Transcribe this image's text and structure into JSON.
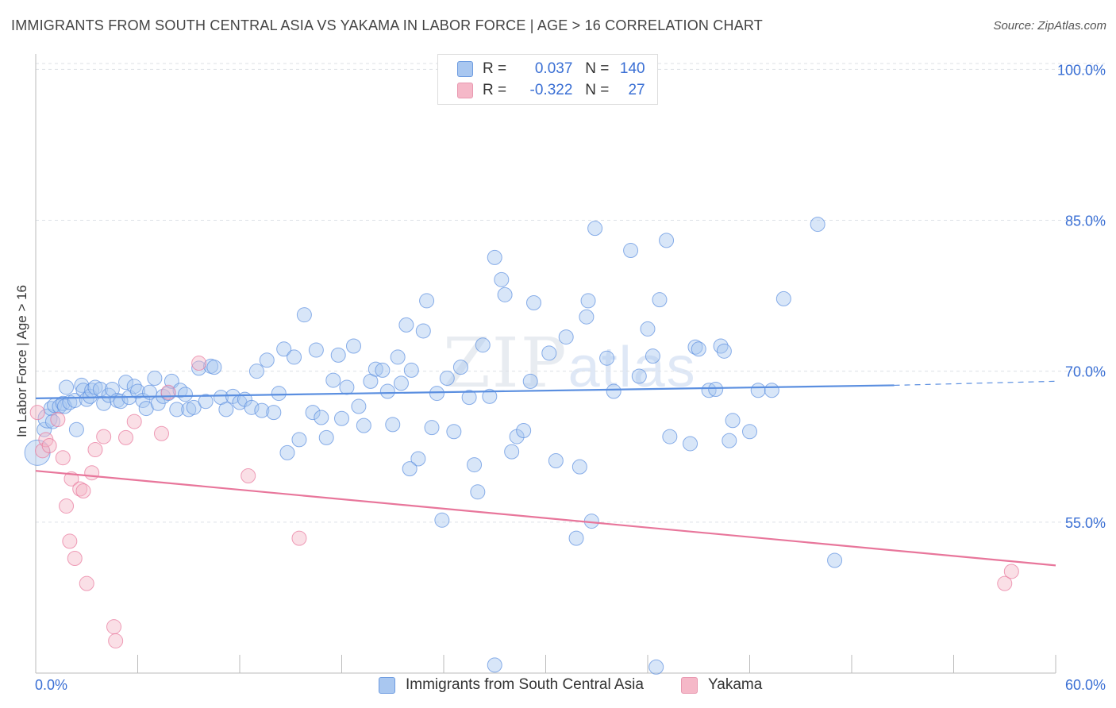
{
  "header": {
    "title": "IMMIGRANTS FROM SOUTH CENTRAL ASIA VS YAKAMA IN LABOR FORCE | AGE > 16 CORRELATION CHART",
    "source": "Source: ZipAtlas.com"
  },
  "watermark": {
    "zip": "ZIP",
    "atlas": "atlas"
  },
  "legend": {
    "rows": [
      {
        "r_label": "R =",
        "r_value": "0.037",
        "n_label": "N =",
        "n_value": "140",
        "color": "#a9c7f0"
      },
      {
        "r_label": "R =",
        "r_value": "-0.322",
        "n_label": "N =",
        "n_value": "27",
        "color": "#f5b8c8"
      }
    ]
  },
  "bottom_legend": {
    "items": [
      {
        "label": "Immigrants from South Central Asia",
        "color": "#a9c7f0"
      },
      {
        "label": "Yakama",
        "color": "#f5b8c8"
      }
    ]
  },
  "chart_data": {
    "type": "scatter",
    "title": "IMMIGRANTS FROM SOUTH CENTRAL ASIA VS YAKAMA IN LABOR FORCE | AGE > 16 CORRELATION CHART",
    "ylabel": "In Labor Force | Age > 16",
    "xlabel": "",
    "xlim": [
      0,
      60
    ],
    "ylim": [
      40,
      102
    ],
    "x_tick_labels": [
      "0.0%",
      "60.0%"
    ],
    "y_ticks": [
      55,
      70,
      85,
      100
    ],
    "y_tick_labels": [
      "55.0%",
      "70.0%",
      "85.0%",
      "100.0%"
    ],
    "grid": "horizontal dashed",
    "legend_position": "top-center",
    "series": [
      {
        "name": "Immigrants from South Central Asia",
        "color": "#5b8fe0",
        "fill": "#a9c7f0",
        "trend": {
          "x0": 0,
          "y0": 67.3,
          "x1": 50.5,
          "y1": 68.6,
          "dash_to": 60,
          "dash_y": 69.0
        },
        "points": [
          [
            0.1,
            61.9,
            16
          ],
          [
            0.5,
            64.2,
            9
          ],
          [
            0.7,
            65.3,
            12
          ],
          [
            0.9,
            66.3,
            9
          ],
          [
            1.0,
            65.0,
            9
          ],
          [
            1.1,
            66.6,
            9
          ],
          [
            1.4,
            66.5,
            9
          ],
          [
            1.6,
            66.8,
            9
          ],
          [
            1.7,
            66.5,
            9
          ],
          [
            1.8,
            68.4,
            9
          ],
          [
            2.0,
            66.9,
            9
          ],
          [
            2.3,
            67.1,
            9
          ],
          [
            2.4,
            64.2,
            9
          ],
          [
            2.7,
            68.6,
            9
          ],
          [
            2.8,
            68.1,
            9
          ],
          [
            3.0,
            67.2,
            9
          ],
          [
            3.2,
            67.5,
            9
          ],
          [
            3.3,
            68.1,
            9
          ],
          [
            3.5,
            68.4,
            9
          ],
          [
            3.8,
            68.2,
            9
          ],
          [
            4.0,
            66.8,
            9
          ],
          [
            4.3,
            67.6,
            9
          ],
          [
            4.5,
            68.2,
            9
          ],
          [
            4.8,
            67.1,
            9
          ],
          [
            5.0,
            67.0,
            9
          ],
          [
            5.3,
            68.9,
            9
          ],
          [
            5.5,
            67.4,
            9
          ],
          [
            5.8,
            68.5,
            9
          ],
          [
            6.0,
            68.0,
            9
          ],
          [
            6.3,
            67.1,
            9
          ],
          [
            6.5,
            66.3,
            9
          ],
          [
            6.7,
            67.9,
            9
          ],
          [
            7.0,
            69.3,
            9
          ],
          [
            7.2,
            66.8,
            9
          ],
          [
            7.5,
            67.5,
            9
          ],
          [
            7.8,
            67.8,
            9
          ],
          [
            8.0,
            69.0,
            9
          ],
          [
            8.3,
            66.2,
            9
          ],
          [
            8.5,
            68.1,
            9
          ],
          [
            8.8,
            67.7,
            9
          ],
          [
            9.0,
            66.2,
            9
          ],
          [
            9.3,
            66.4,
            9
          ],
          [
            9.6,
            70.3,
            9
          ],
          [
            10.0,
            67.0,
            9
          ],
          [
            10.3,
            70.5,
            9
          ],
          [
            10.5,
            70.4,
            9
          ],
          [
            10.9,
            67.4,
            9
          ],
          [
            11.2,
            66.2,
            9
          ],
          [
            11.6,
            67.5,
            9
          ],
          [
            12.0,
            66.9,
            9
          ],
          [
            12.3,
            67.2,
            9
          ],
          [
            12.7,
            66.4,
            9
          ],
          [
            13.0,
            70.0,
            9
          ],
          [
            13.3,
            66.1,
            9
          ],
          [
            13.6,
            71.1,
            9
          ],
          [
            14.0,
            65.9,
            9
          ],
          [
            14.3,
            67.8,
            9
          ],
          [
            14.6,
            72.2,
            9
          ],
          [
            14.8,
            61.9,
            9
          ],
          [
            15.2,
            71.4,
            9
          ],
          [
            15.5,
            63.2,
            9
          ],
          [
            15.8,
            75.6,
            9
          ],
          [
            16.3,
            65.9,
            9
          ],
          [
            16.5,
            72.1,
            9
          ],
          [
            16.8,
            65.4,
            9
          ],
          [
            17.1,
            63.4,
            9
          ],
          [
            17.5,
            69.1,
            9
          ],
          [
            17.8,
            71.6,
            9
          ],
          [
            18.0,
            65.3,
            9
          ],
          [
            18.3,
            68.4,
            9
          ],
          [
            18.7,
            72.5,
            9
          ],
          [
            19.0,
            66.5,
            9
          ],
          [
            19.3,
            64.6,
            9
          ],
          [
            19.7,
            69.0,
            9
          ],
          [
            20.0,
            70.2,
            9
          ],
          [
            20.4,
            70.1,
            9
          ],
          [
            20.7,
            68.0,
            9
          ],
          [
            21.0,
            64.7,
            9
          ],
          [
            21.3,
            71.4,
            9
          ],
          [
            21.5,
            68.8,
            9
          ],
          [
            21.8,
            74.6,
            9
          ],
          [
            22.1,
            70.1,
            9
          ],
          [
            22.5,
            61.3,
            9
          ],
          [
            22.8,
            74.0,
            9
          ],
          [
            23.0,
            77.0,
            9
          ],
          [
            23.3,
            64.4,
            9
          ],
          [
            23.6,
            67.8,
            9
          ],
          [
            23.9,
            55.2,
            9
          ],
          [
            24.2,
            69.3,
            9
          ],
          [
            24.6,
            64.0,
            9
          ],
          [
            25.0,
            70.4,
            9
          ],
          [
            25.5,
            67.4,
            9
          ],
          [
            25.8,
            60.7,
            9
          ],
          [
            26.3,
            72.6,
            9
          ],
          [
            26.7,
            67.5,
            9
          ],
          [
            27.0,
            81.3,
            9
          ],
          [
            27.4,
            79.1,
            9
          ],
          [
            27.6,
            77.6,
            9
          ],
          [
            28.0,
            62.0,
            9
          ],
          [
            28.3,
            63.5,
            9
          ],
          [
            28.7,
            64.1,
            9
          ],
          [
            29.1,
            69.0,
            9
          ],
          [
            29.3,
            76.8,
            9
          ],
          [
            30.2,
            71.8,
            9
          ],
          [
            30.6,
            61.1,
            9
          ],
          [
            31.2,
            73.4,
            9
          ],
          [
            31.8,
            53.4,
            9
          ],
          [
            32.4,
            75.4,
            9
          ],
          [
            32.7,
            55.1,
            9
          ],
          [
            32.9,
            84.2,
            9
          ],
          [
            32.5,
            77.0,
            9
          ],
          [
            33.6,
            71.3,
            9
          ],
          [
            34.0,
            68.0,
            9
          ],
          [
            35.0,
            82.0,
            9
          ],
          [
            35.5,
            69.5,
            9
          ],
          [
            36.0,
            74.2,
            9
          ],
          [
            36.3,
            71.5,
            9
          ],
          [
            36.7,
            77.1,
            9
          ],
          [
            37.1,
            83.0,
            9
          ],
          [
            37.3,
            63.5,
            9
          ],
          [
            38.5,
            62.8,
            9
          ],
          [
            38.8,
            72.4,
            9
          ],
          [
            39.0,
            72.2,
            9
          ],
          [
            39.6,
            68.1,
            9
          ],
          [
            40.0,
            68.2,
            9
          ],
          [
            40.3,
            72.5,
            9
          ],
          [
            40.5,
            72.0,
            9
          ],
          [
            41.0,
            65.1,
            9
          ],
          [
            42.0,
            64.0,
            9
          ],
          [
            42.5,
            68.1,
            9
          ],
          [
            46.0,
            84.6,
            9
          ],
          [
            47.0,
            51.2,
            9
          ],
          [
            27.0,
            40.8,
            9
          ],
          [
            36.5,
            40.6,
            9
          ],
          [
            32.0,
            60.5,
            9
          ],
          [
            22.0,
            60.3,
            9
          ],
          [
            40.8,
            63.1,
            9
          ],
          [
            43.3,
            68.1,
            9
          ],
          [
            44.0,
            77.2,
            9
          ],
          [
            26.0,
            58.0,
            9
          ]
        ]
      },
      {
        "name": "Yakama",
        "color": "#e8769b",
        "fill": "#f5b8c8",
        "trend": {
          "x0": 0,
          "y0": 60.1,
          "x1": 60,
          "y1": 50.7
        },
        "points": [
          [
            0.1,
            65.9,
            9
          ],
          [
            0.4,
            62.1,
            9
          ],
          [
            0.6,
            63.2,
            9
          ],
          [
            0.8,
            62.6,
            9
          ],
          [
            1.3,
            65.2,
            9
          ],
          [
            1.6,
            61.4,
            9
          ],
          [
            1.8,
            56.6,
            9
          ],
          [
            2.0,
            53.1,
            9
          ],
          [
            2.1,
            59.3,
            9
          ],
          [
            2.3,
            51.4,
            9
          ],
          [
            2.6,
            58.3,
            9
          ],
          [
            2.8,
            58.1,
            9
          ],
          [
            3.0,
            48.9,
            9
          ],
          [
            3.3,
            59.9,
            9
          ],
          [
            3.5,
            62.2,
            9
          ],
          [
            4.0,
            63.5,
            9
          ],
          [
            4.6,
            44.6,
            9
          ],
          [
            4.7,
            43.2,
            9
          ],
          [
            5.3,
            63.4,
            9
          ],
          [
            5.8,
            65.0,
            9
          ],
          [
            7.4,
            63.8,
            9
          ],
          [
            7.8,
            67.9,
            9
          ],
          [
            9.6,
            70.8,
            9
          ],
          [
            12.5,
            59.6,
            9
          ],
          [
            15.5,
            53.4,
            9
          ],
          [
            57.0,
            48.9,
            9
          ],
          [
            57.4,
            50.1,
            9
          ]
        ]
      }
    ]
  }
}
